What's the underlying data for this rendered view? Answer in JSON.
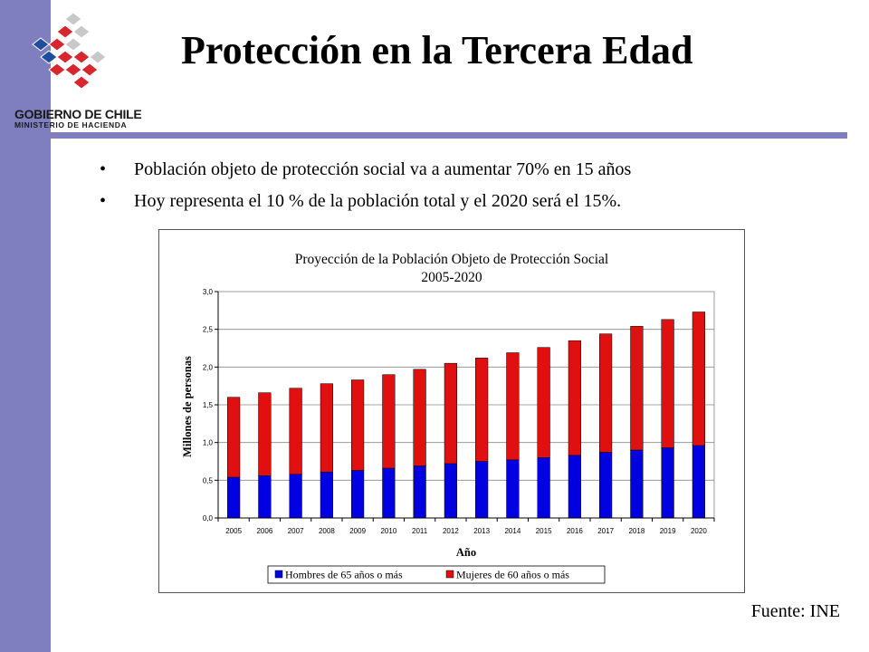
{
  "logo": {
    "name": "GOBIERNO DE CHILE",
    "subtitle": "MINISTERIO DE HACIENDA",
    "colors": [
      "#1f4e9e",
      "#d7262e",
      "#c8c8c8"
    ]
  },
  "slide": {
    "title": "Protección en la Tercera Edad",
    "bullets": [
      "Población objeto de protección social va a aumentar 70% en 15 años",
      "Hoy representa el 10 % de la población total y el 2020 será el 15%."
    ],
    "source": "Fuente: INE",
    "accent_color": "#7f7fbf"
  },
  "chart_data": {
    "type": "bar",
    "stacked": true,
    "title": "Proyección de la Población Objeto de Protección Social",
    "subtitle": "2005-2020",
    "xlabel": "Año",
    "ylabel": "Millones de personas",
    "ylim": [
      0,
      3.0
    ],
    "yticks": [
      "0,0",
      "0,5",
      "1,0",
      "1,5",
      "2,0",
      "2,5",
      "3,0"
    ],
    "grid": true,
    "legend": "bottom",
    "categories": [
      "2005",
      "2006",
      "2007",
      "2008",
      "2009",
      "2010",
      "2011",
      "2012",
      "2013",
      "2014",
      "2015",
      "2016",
      "2017",
      "2018",
      "2019",
      "2020"
    ],
    "series": [
      {
        "name": "Hombres de 65 años o más",
        "color": "#0000e0",
        "values": [
          0.54,
          0.56,
          0.58,
          0.61,
          0.63,
          0.66,
          0.69,
          0.72,
          0.75,
          0.77,
          0.8,
          0.83,
          0.87,
          0.9,
          0.93,
          0.96
        ]
      },
      {
        "name": "Mujeres de 60 años o más",
        "color": "#e01010",
        "values": [
          1.06,
          1.1,
          1.14,
          1.17,
          1.2,
          1.24,
          1.28,
          1.33,
          1.37,
          1.42,
          1.46,
          1.52,
          1.57,
          1.64,
          1.7,
          1.77
        ]
      }
    ]
  }
}
